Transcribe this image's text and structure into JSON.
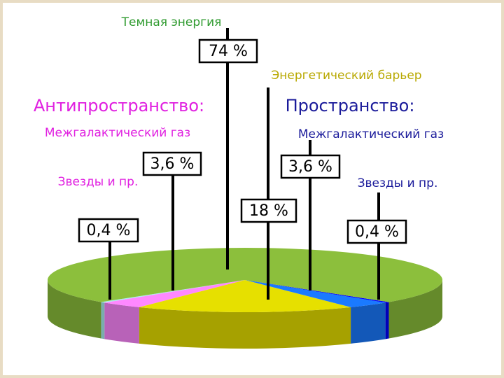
{
  "chart_data": {
    "type": "pie",
    "annotations": [
      "Антипространство:",
      "Пространство:"
    ],
    "categories": [
      "Темная энергия",
      "Звезды и пр.",
      "Межгалактический газ",
      "Энергетический барьер",
      "Межгалактический газ",
      "Звезды и пр."
    ],
    "values": [
      74,
      0.4,
      3.6,
      18,
      3.6,
      0.4
    ],
    "value_labels": [
      "74 %",
      "0,4 %",
      "3,6 %",
      "18 %",
      "3,6 %",
      "0,4 %"
    ],
    "colors": [
      "#8cbf3c",
      "#a8f0f0",
      "#ff88ff",
      "#e6e000",
      "#1a7aff",
      "#0000ff"
    ]
  }
}
